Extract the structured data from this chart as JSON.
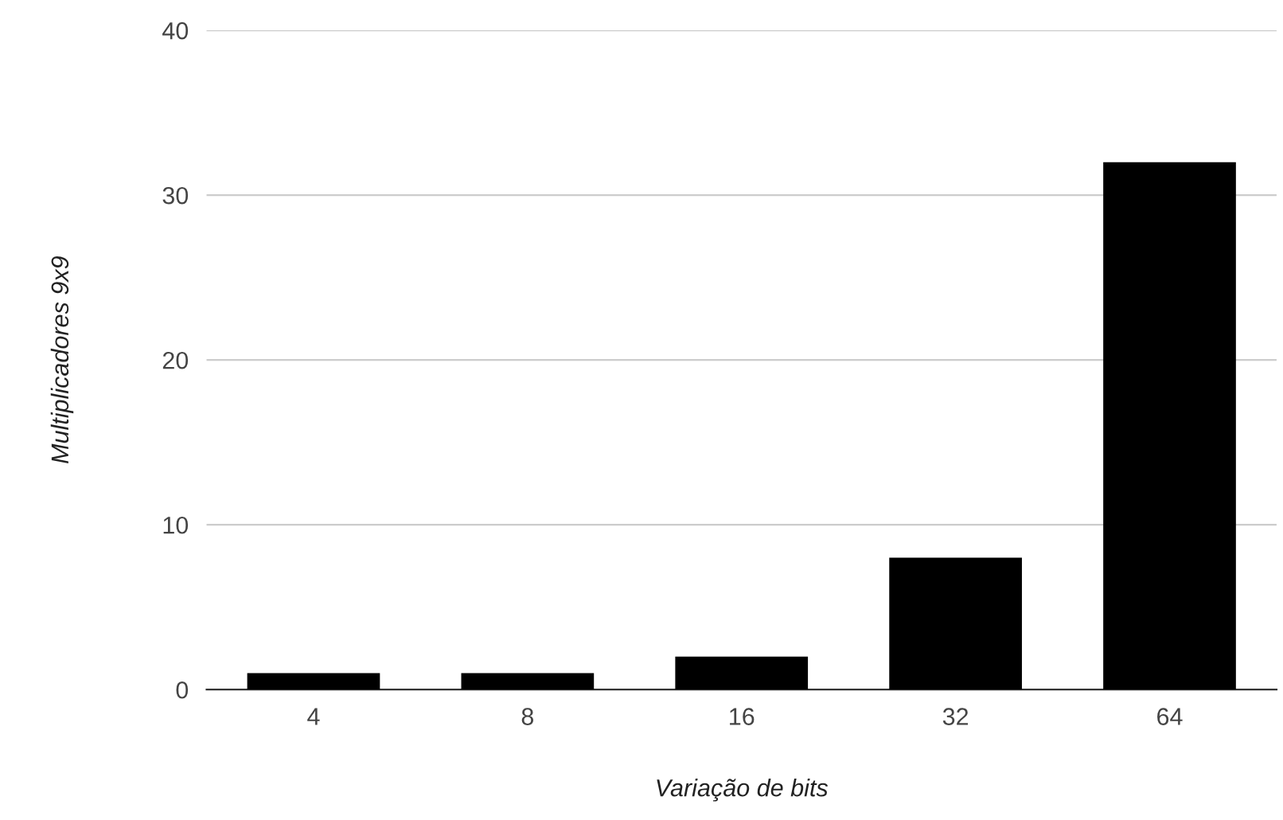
{
  "chart_data": {
    "type": "bar",
    "xlabel": "Variação de bits",
    "ylabel": "Multiplicadores 9x9",
    "categories": [
      "4",
      "8",
      "16",
      "32",
      "64"
    ],
    "values": [
      1,
      1,
      2,
      8,
      32
    ],
    "color": "#000000",
    "ylim": [
      0,
      40
    ],
    "yticks": [
      0,
      10,
      20,
      30,
      40
    ],
    "grid": "y",
    "legend": false
  }
}
